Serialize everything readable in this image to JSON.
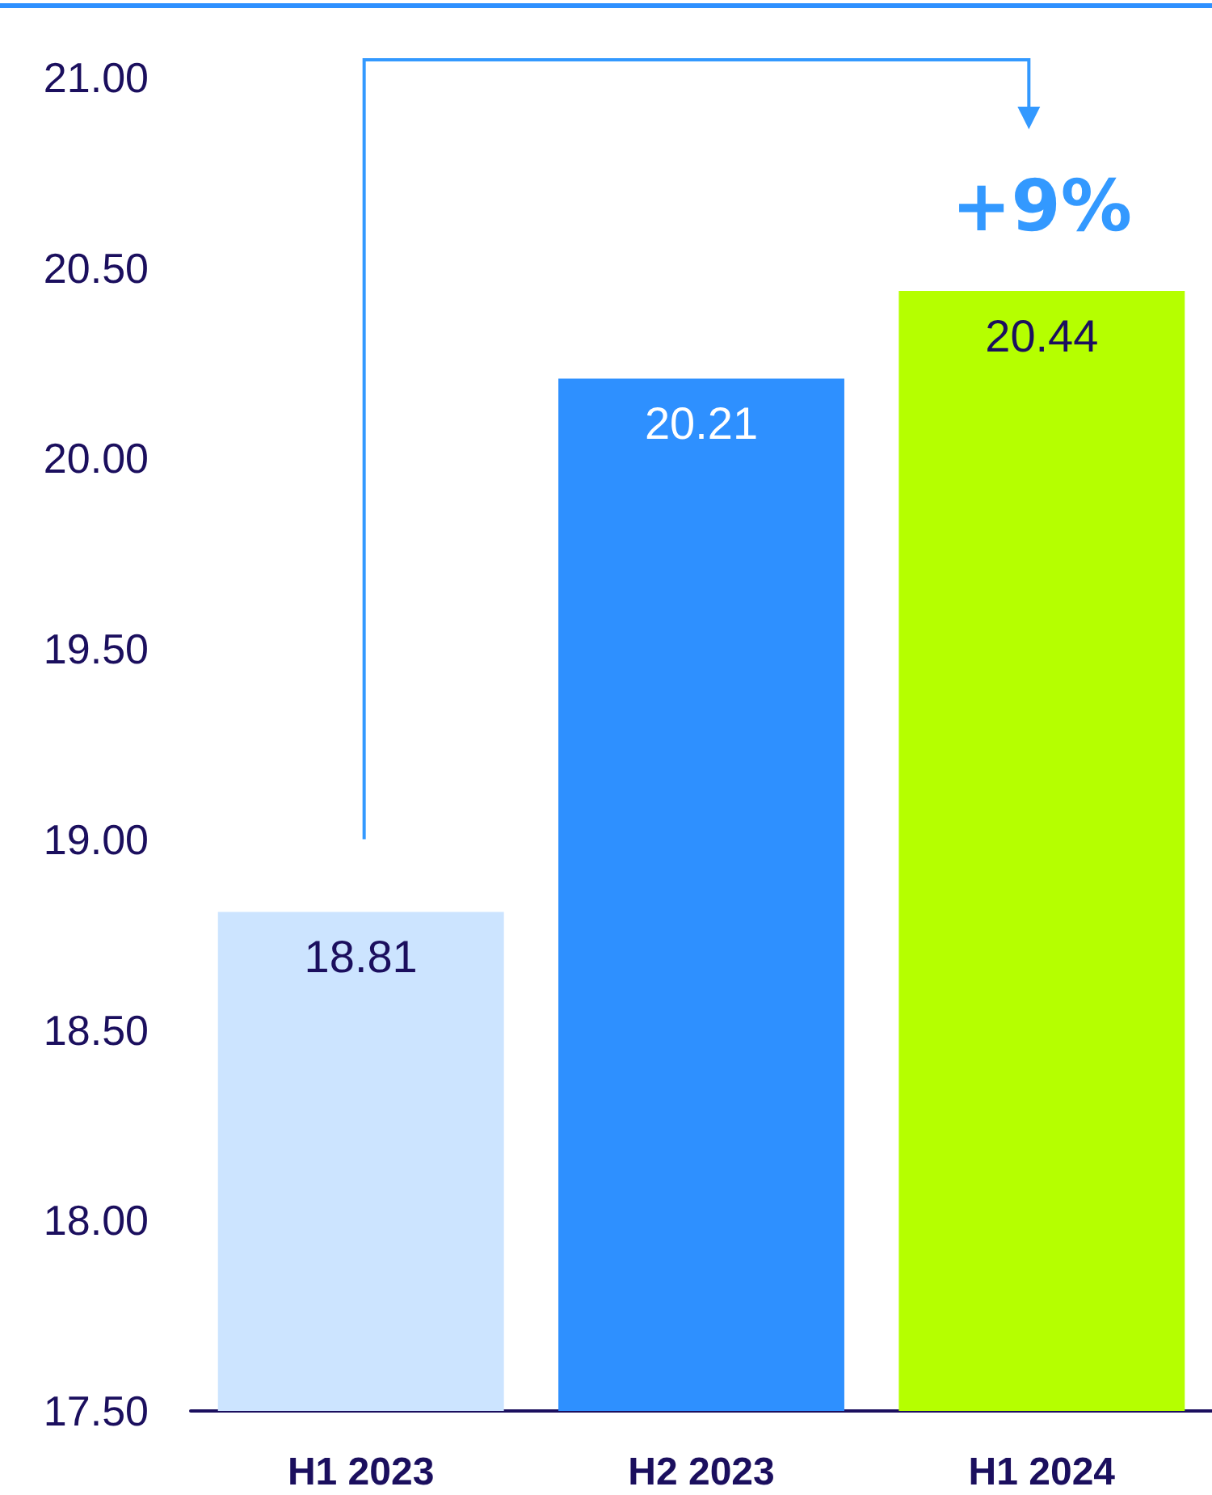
{
  "chart_data": {
    "type": "bar",
    "categories": [
      "H1 2023",
      "H2 2023",
      "H1 2024"
    ],
    "values": [
      18.81,
      20.21,
      20.44
    ],
    "colors": [
      "#cce4ff",
      "#2e90ff",
      "#b5ff00"
    ],
    "ylim": [
      17.5,
      21.0
    ],
    "yticks": [
      {
        "value": 17.5,
        "label": "17.50"
      },
      {
        "value": 18,
        "label": "18.00"
      },
      {
        "value": 18.5,
        "label": "18.50"
      },
      {
        "value": 19,
        "label": "19.00"
      },
      {
        "value": 19.5,
        "label": "19.50"
      },
      {
        "value": 20,
        "label": "20.00"
      },
      {
        "value": 20.5,
        "label": "20.50"
      },
      {
        "value": 21,
        "label": "21.00"
      }
    ],
    "data_labels": true,
    "grid": false,
    "annotations": [
      "+9%"
    ]
  }
}
